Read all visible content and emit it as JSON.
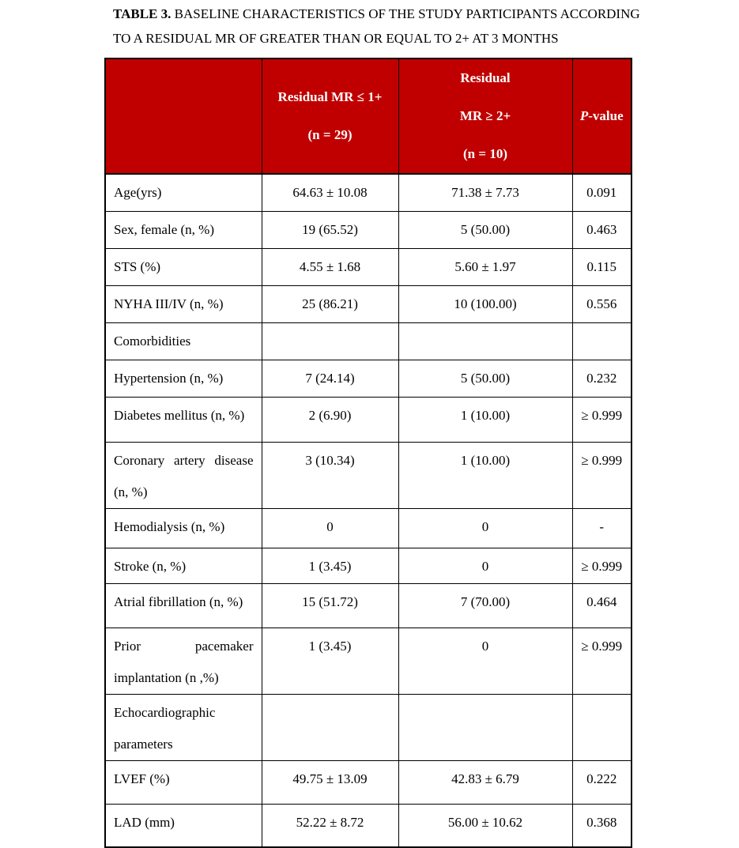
{
  "title": {
    "label": "TABLE 3.",
    "line1_rest": " BASELINE CHARACTERISTICS OF THE STUDY PARTICIPANTS ACCORDING",
    "line2": "TO A RESIDUAL MR OF GREATER THAN OR EQUAL TO 2+ AT 3 MONTHS"
  },
  "colors": {
    "header_bg": "#c00000",
    "header_text": "#ffffff",
    "border": "#000000",
    "body_text": "#000000",
    "page_bg": "#ffffff"
  },
  "table": {
    "header": [
      {
        "name": "header-cell-empty",
        "lines": []
      },
      {
        "name": "header-cell-group1",
        "lines": [
          "Residual MR ≤ 1+",
          "(n = 29)"
        ]
      },
      {
        "name": "header-cell-group2",
        "lines": [
          "Residual",
          "MR ≥ 2+",
          "(n = 10)"
        ]
      },
      {
        "name": "header-cell-pvalue",
        "lines": [
          "P-value"
        ],
        "em_first": true
      }
    ],
    "rows": [
      {
        "label": "Age(yrs)",
        "group1": "64.63 ± 10.08",
        "group2": "71.38 ± 7.73",
        "p": "0.091"
      },
      {
        "label": "Sex, female (n, %)",
        "group1": "19 (65.52)",
        "group2": "5 (50.00)",
        "p": "0.463"
      },
      {
        "label": "STS (%)",
        "group1": "4.55 ± 1.68",
        "group2": "5.60 ± 1.97",
        "p": "0.115"
      },
      {
        "label": "NYHA III/IV (n, %)",
        "group1": "25 (86.21)",
        "group2": "10 (100.00)",
        "p": "0.556"
      },
      {
        "label": "Comorbidities",
        "group1": "",
        "group2": "",
        "p": ""
      },
      {
        "label": "Hypertension (n, %)",
        "group1": "7 (24.14)",
        "group2": "5 (50.00)",
        "p": "0.232"
      },
      {
        "label": "Diabetes mellitus (n, %)",
        "group1": "2 (6.90)",
        "group2": "1 (10.00)",
        "p": "≥ 0.999"
      },
      {
        "label": "Coronary artery disease (n, %)",
        "group1": "3 (10.34)",
        "group2": "1 (10.00)",
        "p": "≥ 0.999"
      },
      {
        "label": "Hemodialysis (n, %)",
        "group1": "0",
        "group2": "0",
        "p": "-"
      },
      {
        "label": "Stroke (n, %)",
        "group1": "1 (3.45)",
        "group2": "0",
        "p": "≥ 0.999"
      },
      {
        "label": "Atrial fibrillation (n, %)",
        "group1": "15 (51.72)",
        "group2": "7 (70.00)",
        "p": "0.464"
      },
      {
        "label": "Prior pacemaker implantation (n ,%)",
        "group1": "1 (3.45)",
        "group2": "0",
        "p": "≥ 0.999"
      },
      {
        "label": "Echocardiographic parameters",
        "group1": "",
        "group2": "",
        "p": ""
      },
      {
        "label": "LVEF (%)",
        "group1": "49.75 ± 13.09",
        "group2": "42.83 ± 6.79",
        "p": "0.222"
      },
      {
        "label": "LAD (mm)",
        "group1": "52.22 ± 8.72",
        "group2": "56.00 ± 10.62",
        "p": "0.368"
      }
    ]
  }
}
